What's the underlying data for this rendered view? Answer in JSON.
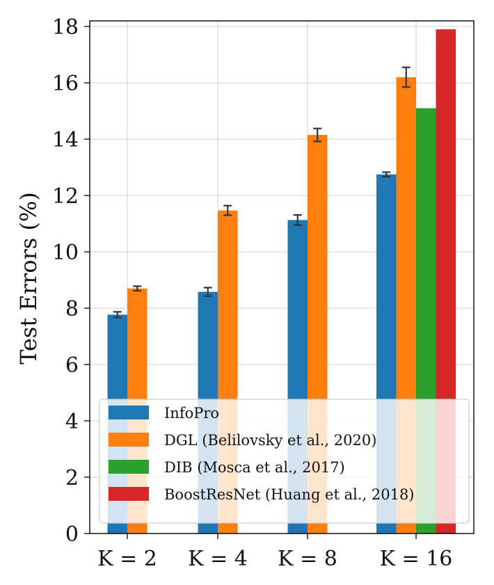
{
  "chart_data": {
    "type": "bar",
    "ylabel": "Test Errors (%)",
    "xlabel": "",
    "ylim": [
      0,
      18.2
    ],
    "yticks": [
      0,
      2,
      4,
      6,
      8,
      10,
      12,
      14,
      16,
      18
    ],
    "categories": [
      "K = 2",
      "K = 4",
      "K = 8",
      "K = 16"
    ],
    "grid": true,
    "legend_position": "lower-left",
    "series": [
      {
        "name": "InfoPro",
        "color": "#1f77b4",
        "values": [
          7.77,
          8.58,
          11.13,
          12.75
        ],
        "errors": [
          0.1,
          0.15,
          0.18,
          0.08
        ]
      },
      {
        "name": "DGL (Belilovsky et al., 2020)",
        "color": "#ff7f0e",
        "values": [
          8.7,
          11.47,
          14.15,
          16.2
        ],
        "errors": [
          0.08,
          0.17,
          0.23,
          0.35
        ]
      },
      {
        "name": "DIB (Mosca et al., 2017)",
        "color": "#2ca02c",
        "values": [
          null,
          null,
          null,
          15.1
        ],
        "errors": [
          null,
          null,
          null,
          null
        ]
      },
      {
        "name": "BoostResNet (Huang et al., 2018)",
        "color": "#d62728",
        "values": [
          null,
          null,
          null,
          17.9
        ],
        "errors": [
          null,
          null,
          null,
          null
        ]
      }
    ]
  }
}
